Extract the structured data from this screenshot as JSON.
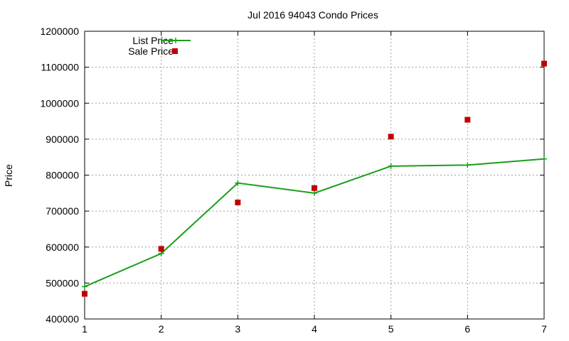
{
  "chart_data": {
    "type": "line",
    "title": "Jul 2016 94043 Condo Prices",
    "xlabel": "",
    "ylabel": "Price",
    "x": [
      1,
      2,
      3,
      4,
      5,
      6,
      7
    ],
    "xlim": [
      1,
      7
    ],
    "ylim": [
      400000,
      1200000
    ],
    "xticks": [
      "1",
      "2",
      "3",
      "4",
      "5",
      "6",
      "7"
    ],
    "yticks": [
      "400000",
      "500000",
      "600000",
      "700000",
      "800000",
      "900000",
      "1000000",
      "1100000",
      "1200000"
    ],
    "grid": true,
    "legend_position": "top-left",
    "series": [
      {
        "name": "List Price",
        "style": "line+cross-markers",
        "color": "#1a9e1a",
        "values": [
          490000,
          582000,
          778000,
          750000,
          825000,
          828000,
          845000
        ]
      },
      {
        "name": "Sale Price",
        "style": "square-markers",
        "color": "#c00000",
        "values": [
          470000,
          595000,
          724000,
          764000,
          907000,
          954000,
          1110000
        ]
      }
    ]
  }
}
